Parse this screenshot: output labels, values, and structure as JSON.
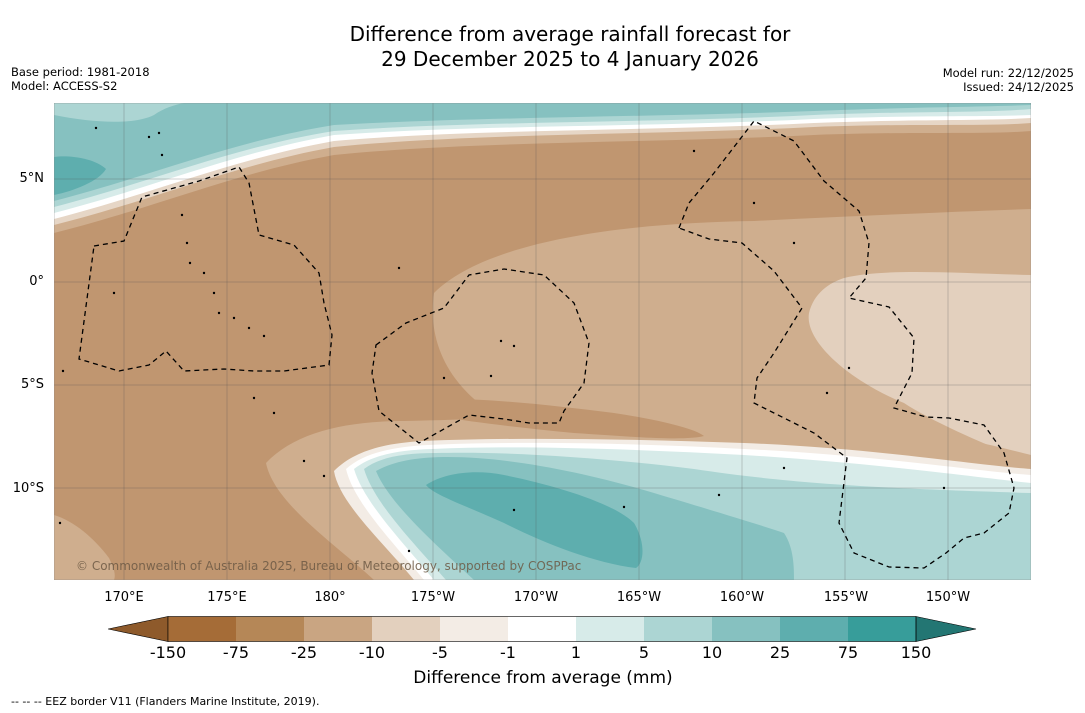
{
  "title": {
    "line1": "Difference from average rainfall forecast for",
    "line2": "29 December 2025 to 4 January 2026"
  },
  "meta": {
    "base_period": "Base period: 1981-2018",
    "model": "Model: ACCESS-S2",
    "model_run": "Model run: 22/12/2025",
    "issued": "Issued: 24/12/2025"
  },
  "map": {
    "latitude_labels": [
      "5°N",
      "0°",
      "5°S",
      "10°S"
    ],
    "longitude_labels": [
      "170°E",
      "175°E",
      "180°",
      "175°W",
      "170°W",
      "165°W",
      "160°W",
      "155°W",
      "150°W"
    ],
    "copyright": "© Commonwealth of Australia 2025, Bureau of Meteorology, supported by COSPPac"
  },
  "colorbar": {
    "label": "Difference from average (mm)",
    "ticks": [
      "-150",
      "-75",
      "-25",
      "-10",
      "-5",
      "-1",
      "1",
      "5",
      "10",
      "25",
      "75",
      "150"
    ],
    "colors": [
      "#a56c37",
      "#b58757",
      "#c9a582",
      "#e3d0be",
      "#f3ece5",
      "#ffffff",
      "#d7ebe9",
      "#acd5d3",
      "#86c1c0",
      "#5eaeae",
      "#379d9a",
      "#2e8a87"
    ],
    "under_color": "#8e5a2b",
    "over_color": "#237673"
  },
  "footer": "--  --  -- EEZ border V11 (Flanders Marine Institute, 2019)."
}
